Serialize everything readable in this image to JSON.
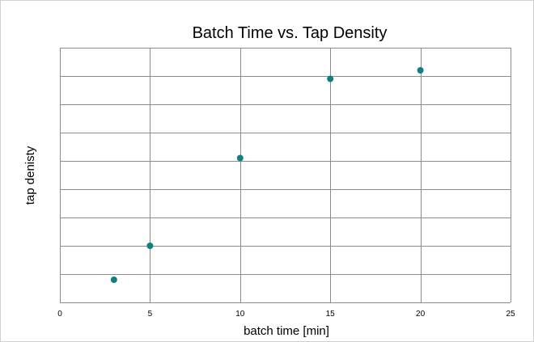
{
  "chart_data": {
    "type": "scatter",
    "title": "Batch Time vs. Tap Density",
    "xlabel": "batch time [min]",
    "ylabel": "tap denisty",
    "xlim": [
      0,
      25
    ],
    "x_ticks": [
      "0",
      "5",
      "10",
      "15",
      "20",
      "25"
    ],
    "ylim": [
      0,
      9
    ],
    "y_ticks_labeled": false,
    "grid": true,
    "series": [
      {
        "color": "#0f7f7f",
        "x": [
          3,
          5,
          10,
          15,
          20
        ],
        "y": [
          0.8,
          2.0,
          5.1,
          7.9,
          8.2
        ]
      }
    ]
  }
}
